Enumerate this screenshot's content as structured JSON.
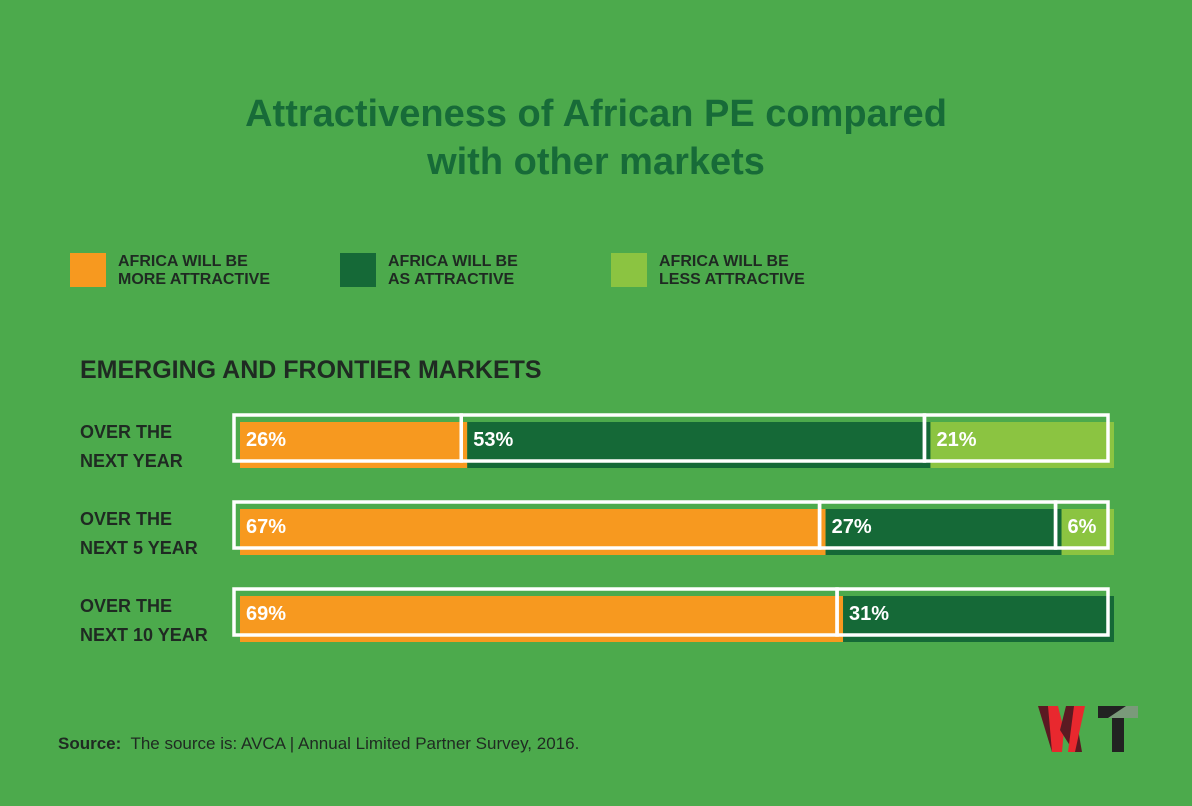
{
  "title_line1": "Attractiveness of African PE compared",
  "title_line2": "with other markets",
  "colors": {
    "more": "#f7991f",
    "as": "#156937",
    "less": "#8bc441",
    "background": "#4caa4c"
  },
  "chart_data": {
    "type": "bar",
    "orientation": "horizontal",
    "stacked": true,
    "title": "Attractiveness of African PE compared with other markets",
    "subtitle": "EMERGING AND FRONTIER MARKETS",
    "categories": [
      "OVER THE NEXT YEAR",
      "OVER THE NEXT 5 YEAR",
      "OVER THE NEXT 10 YEAR"
    ],
    "category_lines": [
      [
        "OVER THE",
        "NEXT YEAR"
      ],
      [
        "OVER THE",
        "NEXT 5 YEAR"
      ],
      [
        "OVER THE",
        "NEXT 10 YEAR"
      ]
    ],
    "series": [
      {
        "name": "AFRICA WILL BE MORE ATTRACTIVE",
        "legend_lines": [
          "AFRICA WILL BE",
          "MORE ATTRACTIVE"
        ],
        "color": "#f7991f",
        "values": [
          26,
          67,
          69
        ]
      },
      {
        "name": "AFRICA WILL BE AS ATTRACTIVE",
        "legend_lines": [
          "AFRICA WILL BE",
          "AS ATTRACTIVE"
        ],
        "color": "#156937",
        "values": [
          53,
          27,
          31
        ]
      },
      {
        "name": "AFRICA WILL BE LESS ATTRACTIVE",
        "legend_lines": [
          "AFRICA WILL BE",
          "LESS ATTRACTIVE"
        ],
        "color": "#8bc441",
        "values": [
          21,
          6,
          0
        ]
      }
    ],
    "unit": "%",
    "xlim": [
      0,
      100
    ],
    "legend": "top"
  },
  "source_label": "Source:",
  "source_text": "The source is: AVCA | Annual Limited Partner Survey, 2016.",
  "logo_text": "WT"
}
